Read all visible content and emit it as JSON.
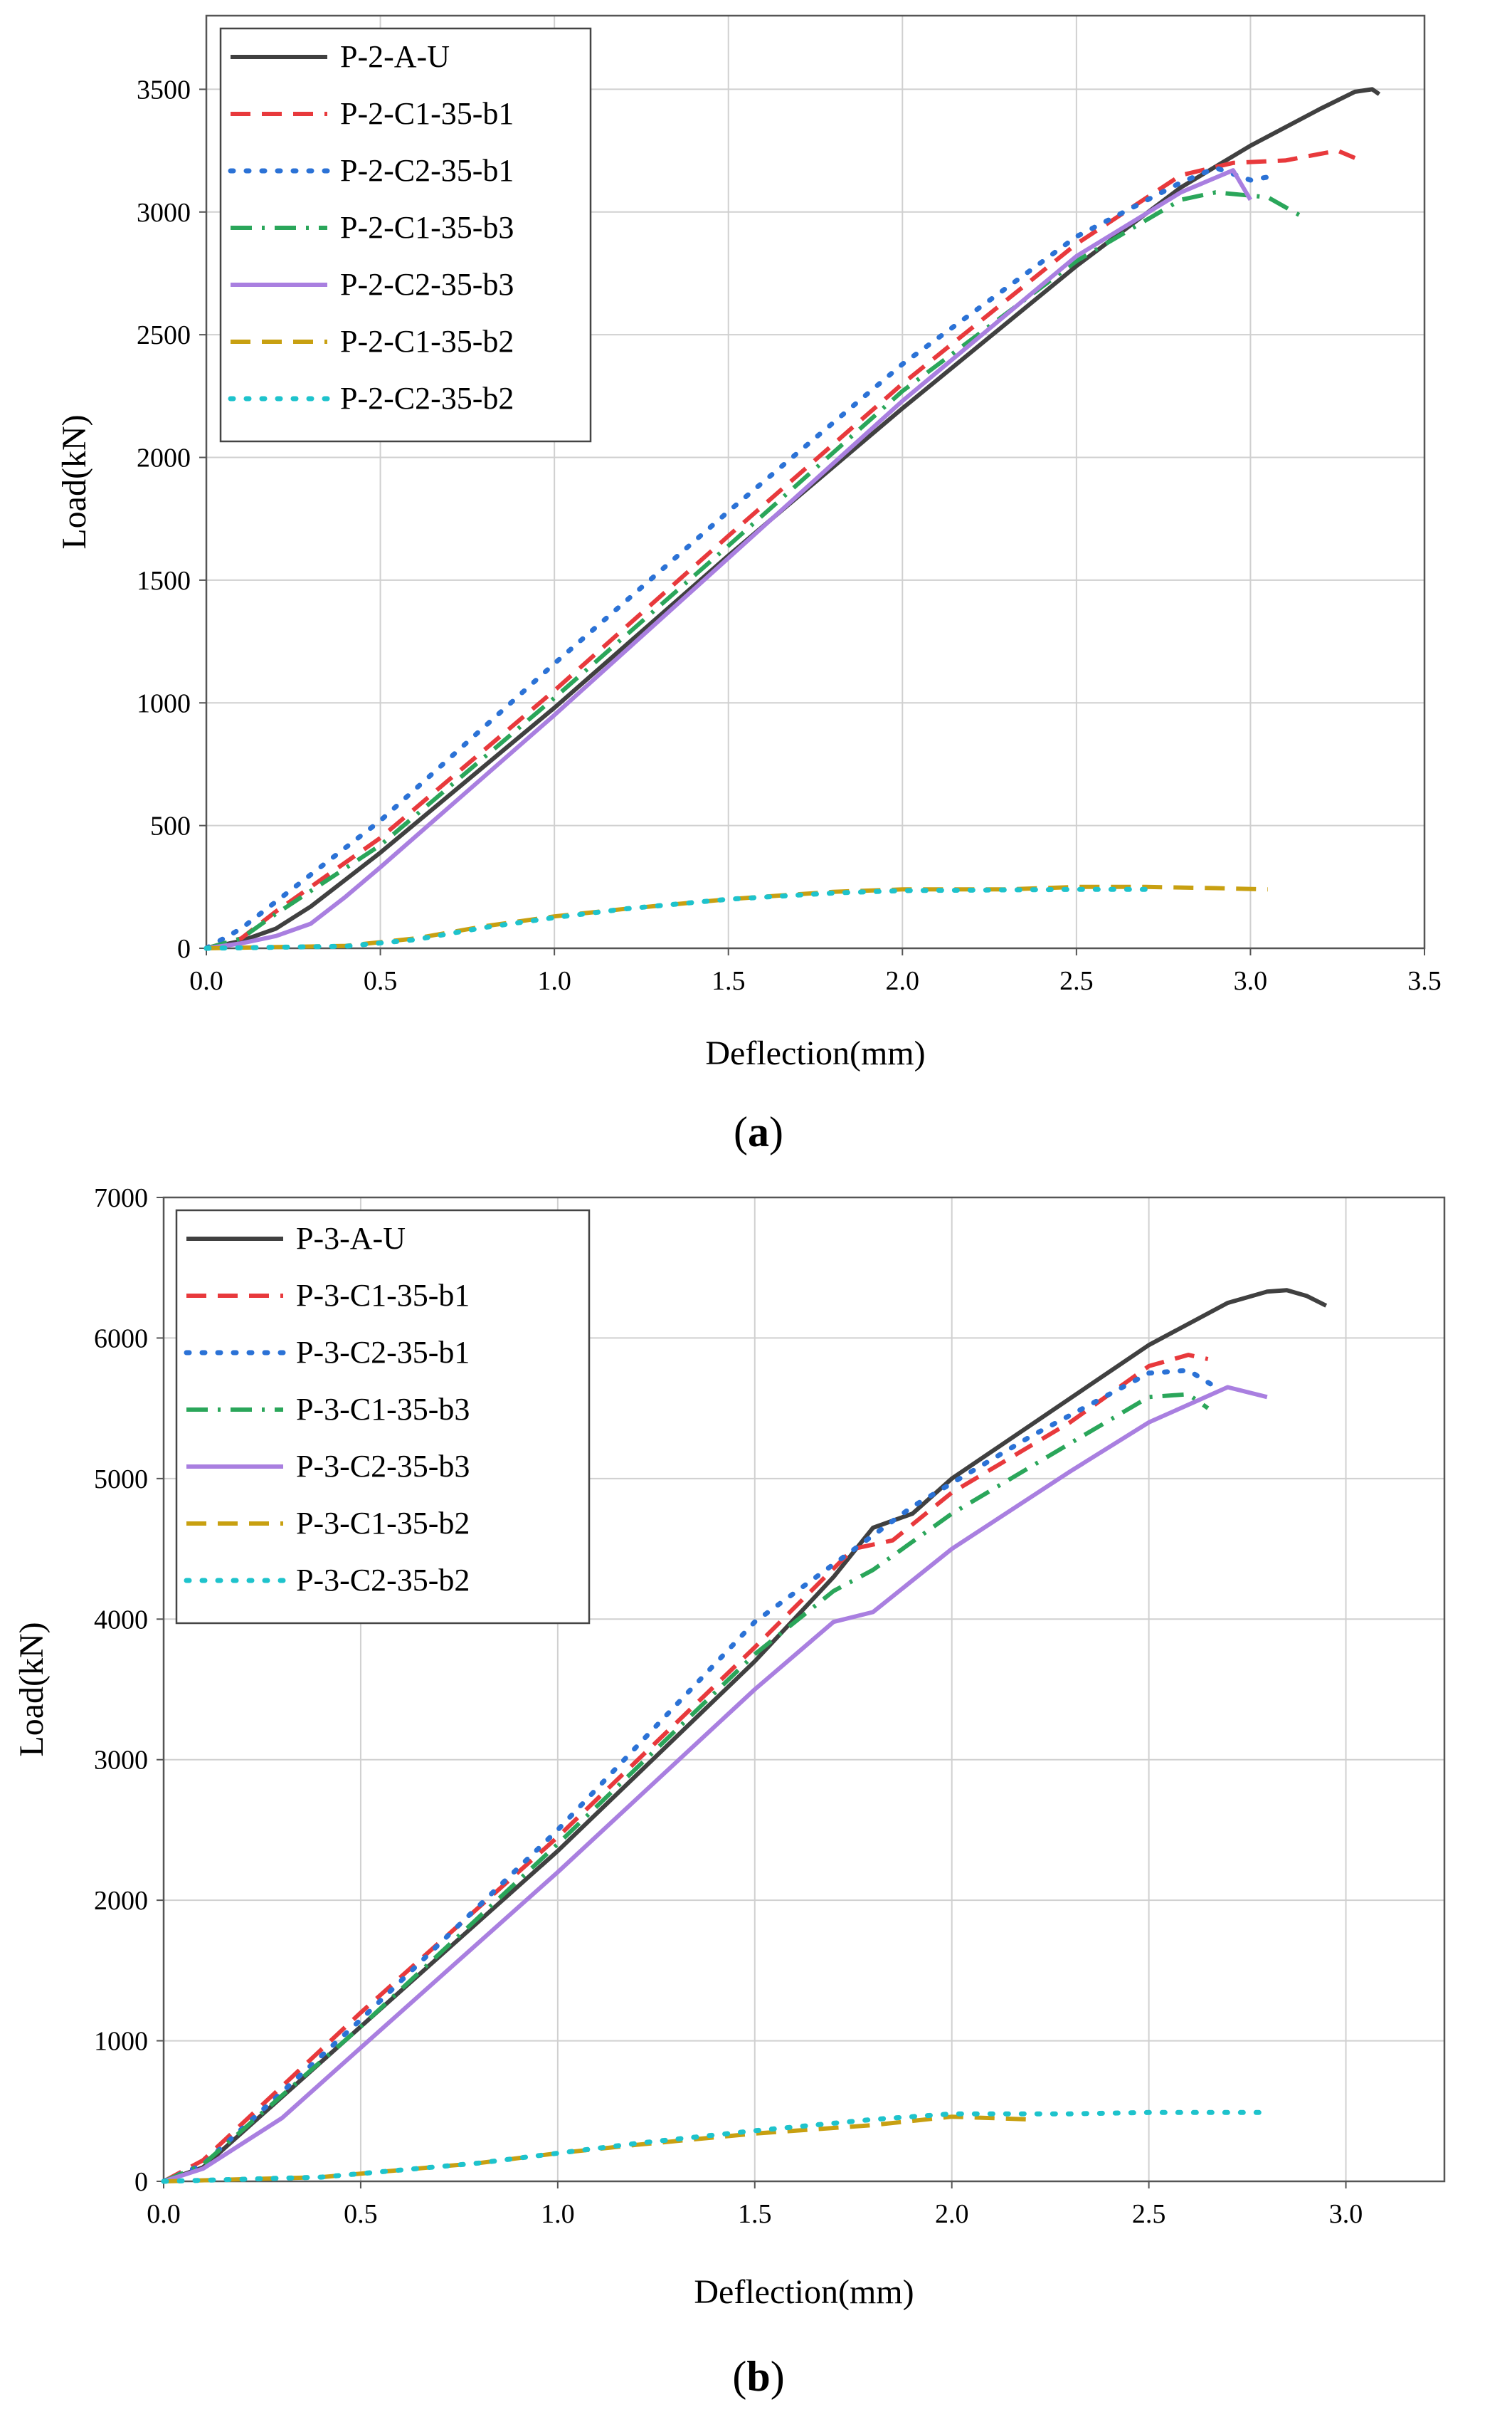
{
  "panels": [
    {
      "caption_letter": "a",
      "chart_data": {
        "type": "line",
        "title": "",
        "xlabel": "Deflection(mm)",
        "ylabel": "Load(kN)",
        "xlim": [
          0,
          3.5
        ],
        "ylim": [
          0,
          3800
        ],
        "x_ticks": [
          0.0,
          0.5,
          1.0,
          1.5,
          2.0,
          2.5,
          3.0,
          3.5
        ],
        "x_tick_labels": [
          "0.0",
          "0.5",
          "1.0",
          "1.5",
          "2.0",
          "2.5",
          "3.0",
          "3.5"
        ],
        "y_ticks": [
          0,
          500,
          1000,
          1500,
          2000,
          2500,
          3000,
          3500
        ],
        "y_tick_labels": [
          "0",
          "500",
          "1000",
          "1500",
          "2000",
          "2500",
          "3000",
          "3500"
        ],
        "grid": true,
        "legend_position": "top-left",
        "series": [
          {
            "name": "P-2-A-U",
            "color": "#404040",
            "style": "solid",
            "points": [
              [
                0,
                0
              ],
              [
                0.1,
                30
              ],
              [
                0.2,
                80
              ],
              [
                0.3,
                170
              ],
              [
                0.4,
                280
              ],
              [
                0.5,
                390
              ],
              [
                1.0,
                980
              ],
              [
                1.5,
                1600
              ],
              [
                2.0,
                2200
              ],
              [
                2.5,
                2780
              ],
              [
                2.8,
                3100
              ],
              [
                3.0,
                3270
              ],
              [
                3.2,
                3420
              ],
              [
                3.3,
                3490
              ],
              [
                3.35,
                3500
              ],
              [
                3.37,
                3480
              ]
            ]
          },
          {
            "name": "P-2-C1-35-b1",
            "color": "#e8393c",
            "style": "dashed",
            "points": [
              [
                0,
                0
              ],
              [
                0.1,
                40
              ],
              [
                0.2,
                150
              ],
              [
                0.5,
                450
              ],
              [
                1.0,
                1050
              ],
              [
                1.5,
                1680
              ],
              [
                2.0,
                2300
              ],
              [
                2.5,
                2870
              ],
              [
                2.8,
                3150
              ],
              [
                2.95,
                3200
              ],
              [
                3.1,
                3210
              ],
              [
                3.25,
                3250
              ],
              [
                3.3,
                3220
              ]
            ]
          },
          {
            "name": "P-2-C2-35-b1",
            "color": "#2b72d6",
            "style": "dotted",
            "points": [
              [
                0,
                0
              ],
              [
                0.1,
                80
              ],
              [
                0.5,
                520
              ],
              [
                1.0,
                1160
              ],
              [
                1.5,
                1780
              ],
              [
                2.0,
                2380
              ],
              [
                2.5,
                2900
              ],
              [
                2.8,
                3120
              ],
              [
                2.9,
                3180
              ],
              [
                3.0,
                3130
              ],
              [
                3.08,
                3150
              ]
            ]
          },
          {
            "name": "P-2-C1-35-b3",
            "color": "#2aa65a",
            "style": "dashdot",
            "points": [
              [
                0,
                0
              ],
              [
                0.1,
                40
              ],
              [
                0.2,
                140
              ],
              [
                0.5,
                420
              ],
              [
                1.0,
                1020
              ],
              [
                1.5,
                1640
              ],
              [
                2.0,
                2270
              ],
              [
                2.5,
                2800
              ],
              [
                2.8,
                3050
              ],
              [
                2.9,
                3080
              ],
              [
                3.05,
                3060
              ],
              [
                3.1,
                3020
              ],
              [
                3.15,
                2980
              ]
            ]
          },
          {
            "name": "P-2-C2-35-b3",
            "color": "#a97fe0",
            "style": "solid",
            "points": [
              [
                0,
                0
              ],
              [
                0.1,
                20
              ],
              [
                0.2,
                50
              ],
              [
                0.3,
                100
              ],
              [
                0.4,
                210
              ],
              [
                0.5,
                330
              ],
              [
                1.0,
                950
              ],
              [
                1.5,
                1590
              ],
              [
                2.0,
                2230
              ],
              [
                2.5,
                2820
              ],
              [
                2.8,
                3080
              ],
              [
                2.95,
                3170
              ],
              [
                3.0,
                3050
              ]
            ]
          },
          {
            "name": "P-2-C1-35-b2",
            "color": "#c8a011",
            "style": "dashed",
            "points": [
              [
                0,
                0
              ],
              [
                0.4,
                10
              ],
              [
                0.6,
                40
              ],
              [
                0.8,
                90
              ],
              [
                1.0,
                130
              ],
              [
                1.2,
                160
              ],
              [
                1.5,
                200
              ],
              [
                1.8,
                230
              ],
              [
                2.0,
                240
              ],
              [
                2.3,
                240
              ],
              [
                2.5,
                250
              ],
              [
                2.7,
                250
              ],
              [
                2.9,
                245
              ],
              [
                3.05,
                240
              ]
            ]
          },
          {
            "name": "P-2-C2-35-b2",
            "color": "#1ec3cc",
            "style": "dotted",
            "points": [
              [
                0,
                0
              ],
              [
                0.4,
                8
              ],
              [
                0.6,
                35
              ],
              [
                0.8,
                85
              ],
              [
                1.0,
                125
              ],
              [
                1.2,
                160
              ],
              [
                1.5,
                200
              ],
              [
                1.8,
                225
              ],
              [
                2.0,
                235
              ],
              [
                2.3,
                238
              ],
              [
                2.5,
                240
              ],
              [
                2.7,
                240
              ],
              [
                2.72,
                230
              ]
            ]
          }
        ]
      }
    },
    {
      "caption_letter": "b",
      "chart_data": {
        "type": "line",
        "title": "",
        "xlabel": "Deflection(mm)",
        "ylabel": "Load(kN)",
        "xlim": [
          0,
          3.25
        ],
        "ylim": [
          0,
          7000
        ],
        "x_ticks": [
          0.0,
          0.5,
          1.0,
          1.5,
          2.0,
          2.5,
          3.0
        ],
        "x_tick_labels": [
          "0.0",
          "0.5",
          "1.0",
          "1.5",
          "2.0",
          "2.5",
          "3.0"
        ],
        "y_ticks": [
          0,
          1000,
          2000,
          3000,
          4000,
          5000,
          6000,
          7000
        ],
        "y_tick_labels": [
          "0",
          "1000",
          "2000",
          "3000",
          "4000",
          "5000",
          "6000",
          "7000"
        ],
        "grid": true,
        "legend_position": "top-left",
        "series": [
          {
            "name": "P-3-A-U",
            "color": "#404040",
            "style": "solid",
            "points": [
              [
                0,
                0
              ],
              [
                0.1,
                100
              ],
              [
                0.3,
                600
              ],
              [
                0.5,
                1100
              ],
              [
                1.0,
                2350
              ],
              [
                1.5,
                3700
              ],
              [
                1.7,
                4300
              ],
              [
                1.8,
                4650
              ],
              [
                1.9,
                4750
              ],
              [
                2.0,
                5000
              ],
              [
                2.5,
                5950
              ],
              [
                2.7,
                6250
              ],
              [
                2.8,
                6330
              ],
              [
                2.85,
                6340
              ],
              [
                2.9,
                6300
              ],
              [
                2.95,
                6230
              ]
            ]
          },
          {
            "name": "P-3-C1-35-b1",
            "color": "#e8393c",
            "style": "dashed",
            "points": [
              [
                0,
                0
              ],
              [
                0.1,
                150
              ],
              [
                0.5,
                1200
              ],
              [
                1.0,
                2450
              ],
              [
                1.5,
                3800
              ],
              [
                1.75,
                4500
              ],
              [
                1.85,
                4560
              ],
              [
                2.0,
                4900
              ],
              [
                2.3,
                5400
              ],
              [
                2.5,
                5800
              ],
              [
                2.6,
                5880
              ],
              [
                2.65,
                5850
              ]
            ]
          },
          {
            "name": "P-3-C2-35-b1",
            "color": "#2b72d6",
            "style": "dotted",
            "points": [
              [
                0,
                0
              ],
              [
                0.1,
                120
              ],
              [
                0.5,
                1150
              ],
              [
                1.0,
                2500
              ],
              [
                1.5,
                3980
              ],
              [
                1.9,
                4800
              ],
              [
                2.2,
                5300
              ],
              [
                2.5,
                5750
              ],
              [
                2.6,
                5770
              ],
              [
                2.67,
                5650
              ]
            ]
          },
          {
            "name": "P-3-C1-35-b3",
            "color": "#2aa65a",
            "style": "dashdot",
            "points": [
              [
                0,
                0
              ],
              [
                0.1,
                120
              ],
              [
                0.5,
                1100
              ],
              [
                1.0,
                2400
              ],
              [
                1.5,
                3750
              ],
              [
                1.7,
                4200
              ],
              [
                1.8,
                4350
              ],
              [
                2.0,
                4750
              ],
              [
                2.3,
                5250
              ],
              [
                2.5,
                5580
              ],
              [
                2.6,
                5600
              ],
              [
                2.65,
                5500
              ]
            ]
          },
          {
            "name": "P-3-C2-35-b3",
            "color": "#a97fe0",
            "style": "solid",
            "points": [
              [
                0,
                0
              ],
              [
                0.1,
                90
              ],
              [
                0.3,
                450
              ],
              [
                0.5,
                950
              ],
              [
                1.0,
                2200
              ],
              [
                1.5,
                3500
              ],
              [
                1.7,
                3980
              ],
              [
                1.8,
                4050
              ],
              [
                2.0,
                4500
              ],
              [
                2.3,
                5050
              ],
              [
                2.5,
                5400
              ],
              [
                2.7,
                5650
              ],
              [
                2.8,
                5580
              ]
            ]
          },
          {
            "name": "P-3-C1-35-b2",
            "color": "#c8a011",
            "style": "dashed",
            "points": [
              [
                0,
                0
              ],
              [
                0.4,
                30
              ],
              [
                0.6,
                80
              ],
              [
                0.8,
                130
              ],
              [
                1.0,
                200
              ],
              [
                1.2,
                260
              ],
              [
                1.5,
                340
              ],
              [
                1.8,
                400
              ],
              [
                2.0,
                460
              ],
              [
                2.2,
                440
              ]
            ]
          },
          {
            "name": "P-3-C2-35-b2",
            "color": "#1ec3cc",
            "style": "dotted",
            "points": [
              [
                0,
                0
              ],
              [
                0.4,
                30
              ],
              [
                0.6,
                80
              ],
              [
                0.8,
                130
              ],
              [
                1.0,
                200
              ],
              [
                1.2,
                270
              ],
              [
                1.5,
                360
              ],
              [
                1.8,
                440
              ],
              [
                2.0,
                480
              ],
              [
                2.3,
                480
              ],
              [
                2.5,
                490
              ],
              [
                2.8,
                490
              ]
            ]
          }
        ]
      }
    }
  ]
}
